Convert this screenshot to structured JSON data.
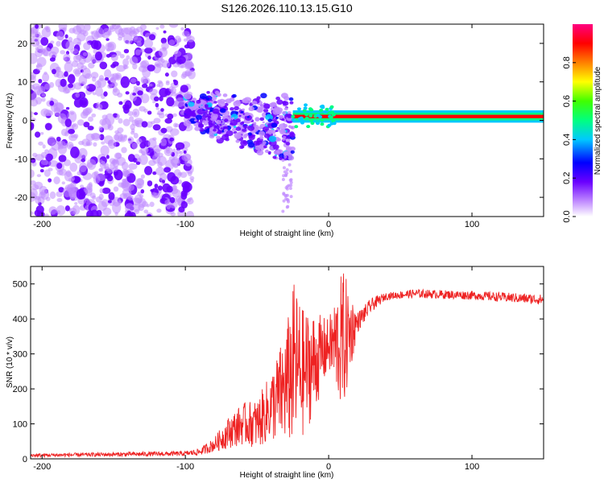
{
  "figure": {
    "title": "S126.2026.110.13.15.G10"
  },
  "chart_data": [
    {
      "type": "heatmap",
      "title": "S126.2026.110.13.15.G10",
      "xlabel": "Height of straight line (km)",
      "ylabel": "Frequency (Hz)",
      "xlim": [
        -208,
        150
      ],
      "ylim": [
        -25,
        25
      ],
      "xticks": [
        -200,
        -100,
        0,
        100
      ],
      "xtick_labels": [
        "-200",
        "-100",
        "0",
        "100"
      ],
      "yticks": [
        -20,
        -10,
        0,
        10,
        20
      ],
      "ytick_labels": [
        "-20",
        "-10",
        "0",
        "10",
        "20"
      ],
      "colorbar": {
        "label": "Normalized spectral amplitude",
        "range": [
          0,
          1
        ],
        "ticks": [
          0.0,
          0.2,
          0.4,
          0.6,
          0.8
        ],
        "tick_labels": [
          "0.0",
          "0.2",
          "0.4",
          "0.6",
          "0.8"
        ],
        "colormap": [
          "#ffffff",
          "#c08aff",
          "#6a00ff",
          "#0000ff",
          "#00c8ff",
          "#00ff80",
          "#40ff00",
          "#ffff00",
          "#ff8000",
          "#ff0000",
          "#ff0080"
        ]
      },
      "features": [
        {
          "name": "scattered weak noise",
          "x_range": [
            -208,
            -95
          ],
          "freq_range": [
            -25,
            25
          ],
          "amplitude": 0.15
        },
        {
          "name": "noisy transition",
          "x_range": [
            -100,
            -25
          ],
          "freq_range": [
            -24,
            12
          ],
          "amplitude": 0.3
        },
        {
          "name": "signal carrier",
          "x_range": [
            -25,
            150
          ],
          "freq_center": 1,
          "amplitude": 0.9
        }
      ]
    },
    {
      "type": "line",
      "xlabel": "Height of straight line (km)",
      "ylabel": "SNR (10 * v/v)",
      "xlim": [
        -208,
        150
      ],
      "ylim": [
        0,
        550
      ],
      "xticks": [
        -200,
        -100,
        0,
        100
      ],
      "xtick_labels": [
        "-200",
        "-100",
        "0",
        "100"
      ],
      "yticks": [
        0,
        100,
        200,
        300,
        400,
        500
      ],
      "ytick_labels": [
        "0",
        "100",
        "200",
        "300",
        "400",
        "500"
      ],
      "series": [
        {
          "name": "SNR",
          "color": "#ee2222",
          "envelope": [
            {
              "x": -208,
              "lo": 5,
              "hi": 15
            },
            {
              "x": -100,
              "lo": 8,
              "hi": 22
            },
            {
              "x": -90,
              "lo": 10,
              "hi": 30
            },
            {
              "x": -80,
              "lo": 20,
              "hi": 60
            },
            {
              "x": -70,
              "lo": 30,
              "hi": 120
            },
            {
              "x": -60,
              "lo": 40,
              "hi": 160
            },
            {
              "x": -50,
              "lo": 30,
              "hi": 170
            },
            {
              "x": -40,
              "lo": 50,
              "hi": 250
            },
            {
              "x": -30,
              "lo": 40,
              "hi": 370
            },
            {
              "x": -24,
              "lo": 30,
              "hi": 510
            },
            {
              "x": -18,
              "lo": 60,
              "hi": 430
            },
            {
              "x": -10,
              "lo": 130,
              "hi": 420
            },
            {
              "x": 0,
              "lo": 250,
              "hi": 400
            },
            {
              "x": 10,
              "lo": 125,
              "hi": 545
            },
            {
              "x": 20,
              "lo": 360,
              "hi": 420
            },
            {
              "x": 30,
              "lo": 420,
              "hi": 460
            },
            {
              "x": 40,
              "lo": 455,
              "hi": 475
            },
            {
              "x": 60,
              "lo": 460,
              "hi": 485
            },
            {
              "x": 100,
              "lo": 455,
              "hi": 480
            },
            {
              "x": 150,
              "lo": 440,
              "hi": 470
            }
          ]
        }
      ]
    }
  ]
}
